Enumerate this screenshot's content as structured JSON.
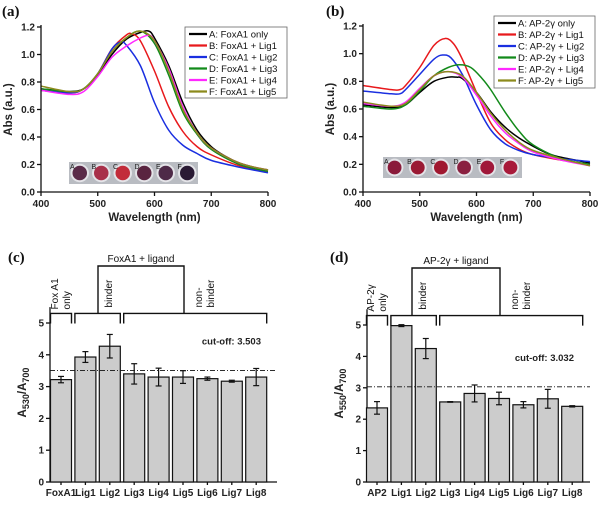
{
  "chart_data": [
    {
      "panel": "(a)",
      "type": "line",
      "xlabel": "Wavelength (nm)",
      "ylabel": "Abs (a.u.)",
      "xlim": [
        400,
        800
      ],
      "ylim": [
        0,
        1.2
      ],
      "xticks": [
        400,
        500,
        600,
        700,
        800
      ],
      "yticks": [
        "0.0",
        "0.2",
        "0.4",
        "0.6",
        "0.8",
        "1.0",
        "1.2"
      ],
      "legend_position": "top-right",
      "inset_labels": [
        "A",
        "B",
        "C",
        "D",
        "E",
        "F"
      ],
      "inset_colors": [
        "#5a2a48",
        "#a8304a",
        "#c22c3a",
        "#5a2440",
        "#4e2a48",
        "#2a1a34"
      ],
      "series": [
        {
          "name": "A: FoxA1 only",
          "color": "#000000",
          "x": [
            400,
            425,
            450,
            475,
            500,
            525,
            550,
            575,
            590,
            600,
            625,
            650,
            675,
            700,
            725,
            750,
            775,
            800
          ],
          "y": [
            0.75,
            0.74,
            0.73,
            0.75,
            0.85,
            1.0,
            1.11,
            1.16,
            1.17,
            1.12,
            0.92,
            0.65,
            0.45,
            0.33,
            0.26,
            0.21,
            0.18,
            0.16
          ]
        },
        {
          "name": "B: FoxA1 + Lig1",
          "color": "#e8191c",
          "x": [
            400,
            450,
            475,
            500,
            525,
            550,
            560,
            575,
            600,
            625,
            650,
            675,
            700,
            750,
            800
          ],
          "y": [
            0.74,
            0.72,
            0.75,
            0.86,
            1.04,
            1.14,
            1.15,
            1.1,
            0.88,
            0.62,
            0.44,
            0.33,
            0.27,
            0.19,
            0.15
          ]
        },
        {
          "name": "C: FoxA1 + Lig2",
          "color": "#1a2fe0",
          "x": [
            400,
            450,
            475,
            500,
            525,
            540,
            550,
            575,
            600,
            625,
            650,
            675,
            700,
            750,
            800
          ],
          "y": [
            0.74,
            0.72,
            0.75,
            0.86,
            1.04,
            1.09,
            1.07,
            0.92,
            0.65,
            0.45,
            0.34,
            0.28,
            0.23,
            0.18,
            0.14
          ]
        },
        {
          "name": "D: FoxA1 + Lig3",
          "color": "#128a1a",
          "x": [
            400,
            450,
            475,
            500,
            525,
            550,
            575,
            600,
            625,
            650,
            675,
            700,
            750,
            800
          ],
          "y": [
            0.75,
            0.73,
            0.75,
            0.86,
            1.02,
            1.12,
            1.17,
            1.08,
            0.85,
            0.58,
            0.42,
            0.31,
            0.2,
            0.15
          ]
        },
        {
          "name": "E: FoxA1 + Lig4",
          "color": "#ff28ff",
          "x": [
            400,
            450,
            475,
            500,
            525,
            550,
            575,
            590,
            600,
            625,
            650,
            675,
            700,
            750,
            800
          ],
          "y": [
            0.74,
            0.71,
            0.73,
            0.84,
            0.98,
            1.06,
            1.12,
            1.14,
            1.1,
            0.9,
            0.62,
            0.43,
            0.32,
            0.21,
            0.16
          ]
        },
        {
          "name": "F: FoxA1 + Lig5",
          "color": "#8c8a1c",
          "x": [
            400,
            450,
            475,
            500,
            525,
            550,
            575,
            600,
            625,
            650,
            675,
            700,
            750,
            800
          ],
          "y": [
            0.77,
            0.73,
            0.75,
            0.86,
            1.02,
            1.12,
            1.17,
            1.1,
            0.88,
            0.6,
            0.43,
            0.32,
            0.21,
            0.16
          ]
        }
      ]
    },
    {
      "panel": "(b)",
      "type": "line",
      "xlabel": "Wavelength (nm)",
      "ylabel": "Abs (a.u.)",
      "xlim": [
        400,
        800
      ],
      "ylim": [
        0,
        1.2
      ],
      "xticks": [
        400,
        500,
        600,
        700,
        800
      ],
      "yticks": [
        "0.0",
        "0.2",
        "0.4",
        "0.6",
        "0.8",
        "1.0",
        "1.2"
      ],
      "legend_position": "top-right",
      "inset_labels": [
        "A",
        "B",
        "C",
        "D",
        "E",
        "F"
      ],
      "inset_colors": [
        "#8a1a3a",
        "#9a1a34",
        "#a01830",
        "#8a2040",
        "#a0183a",
        "#a81a3a"
      ],
      "series": [
        {
          "name": "A: AP-2γ only",
          "color": "#000000",
          "x": [
            400,
            450,
            475,
            500,
            525,
            550,
            565,
            575,
            600,
            625,
            650,
            675,
            700,
            725,
            750,
            800
          ],
          "y": [
            0.63,
            0.61,
            0.63,
            0.72,
            0.8,
            0.83,
            0.83,
            0.82,
            0.72,
            0.58,
            0.47,
            0.39,
            0.33,
            0.28,
            0.25,
            0.21
          ]
        },
        {
          "name": "B: AP-2γ + Lig1",
          "color": "#e8191c",
          "x": [
            400,
            450,
            465,
            475,
            500,
            525,
            545,
            560,
            575,
            600,
            625,
            650,
            675,
            700,
            750,
            800
          ],
          "y": [
            0.77,
            0.74,
            0.74,
            0.77,
            0.9,
            1.06,
            1.11,
            1.07,
            0.96,
            0.72,
            0.5,
            0.38,
            0.31,
            0.27,
            0.23,
            0.2
          ]
        },
        {
          "name": "C: AP-2γ + Lig2",
          "color": "#1a2fe0",
          "x": [
            400,
            450,
            465,
            475,
            500,
            525,
            540,
            555,
            575,
            600,
            625,
            650,
            675,
            700,
            750,
            800
          ],
          "y": [
            0.73,
            0.71,
            0.71,
            0.74,
            0.85,
            0.96,
            0.99,
            0.97,
            0.85,
            0.63,
            0.45,
            0.35,
            0.3,
            0.27,
            0.24,
            0.22
          ]
        },
        {
          "name": "D: AP-2γ + Lig3",
          "color": "#128a1a",
          "x": [
            400,
            450,
            475,
            500,
            525,
            550,
            570,
            590,
            610,
            625,
            650,
            675,
            700,
            750,
            800
          ],
          "y": [
            0.62,
            0.6,
            0.63,
            0.73,
            0.84,
            0.9,
            0.92,
            0.9,
            0.82,
            0.74,
            0.58,
            0.44,
            0.34,
            0.24,
            0.2
          ]
        },
        {
          "name": "E: AP-2γ + Lig4",
          "color": "#ff28ff",
          "x": [
            400,
            450,
            475,
            500,
            525,
            550,
            575,
            600,
            625,
            650,
            675,
            700,
            750,
            800
          ],
          "y": [
            0.64,
            0.62,
            0.65,
            0.75,
            0.84,
            0.87,
            0.83,
            0.7,
            0.55,
            0.43,
            0.35,
            0.29,
            0.23,
            0.19
          ]
        },
        {
          "name": "F: AP-2γ + Lig5",
          "color": "#8c8a1c",
          "x": [
            400,
            450,
            475,
            500,
            525,
            550,
            575,
            600,
            625,
            650,
            675,
            700,
            750,
            800
          ],
          "y": [
            0.65,
            0.62,
            0.64,
            0.74,
            0.84,
            0.87,
            0.84,
            0.72,
            0.57,
            0.45,
            0.36,
            0.3,
            0.24,
            0.19
          ]
        }
      ]
    },
    {
      "panel": "(c)",
      "type": "bar",
      "ylabel": {
        "a": "A",
        "sub1": "530",
        "mid": "/A",
        "sub2": "700"
      },
      "ylim": [
        0,
        5.5
      ],
      "yticks": [
        0,
        1,
        2,
        3,
        4,
        5
      ],
      "categories": [
        "FoxA1",
        "Lig1",
        "Lig2",
        "Lig3",
        "Lig4",
        "Lig5",
        "Lig6",
        "Lig7",
        "Lig8"
      ],
      "values": [
        3.22,
        3.93,
        4.27,
        3.4,
        3.3,
        3.3,
        3.25,
        3.17,
        3.3
      ],
      "errors": [
        0.1,
        0.17,
        0.37,
        0.32,
        0.28,
        0.2,
        0.05,
        0.03,
        0.27
      ],
      "bar_color": "#cccccc",
      "cutoff": 3.503,
      "cutoff_label": "cut-off: 3.503",
      "annotations": {
        "group_title": "FoxA1 + ligand",
        "only_1": "Fox A1",
        "only_2": "only",
        "binder": "binder",
        "nonbinder_1": "non-",
        "nonbinder_2": "binder"
      }
    },
    {
      "panel": "(d)",
      "type": "bar",
      "ylabel": {
        "a": "A",
        "sub1": "550",
        "mid": "/A",
        "sub2": "700"
      },
      "ylim": [
        0,
        5.5
      ],
      "yticks": [
        0,
        1,
        2,
        3,
        4,
        5
      ],
      "categories": [
        "AP2",
        "Lig1",
        "Lig2",
        "Lig3",
        "Lig4",
        "Lig5",
        "Lig6",
        "Lig7",
        "Lig8"
      ],
      "values": [
        2.36,
        4.98,
        4.25,
        2.55,
        2.82,
        2.66,
        2.46,
        2.65,
        2.41
      ],
      "errors": [
        0.2,
        0.03,
        0.32,
        0.01,
        0.27,
        0.2,
        0.1,
        0.3,
        0.02
      ],
      "bar_color": "#cccccc",
      "cutoff": 3.032,
      "cutoff_label": "cut-off: 3.032",
      "annotations": {
        "group_title": "AP-2γ + ligand",
        "only_1": "AP-2γ",
        "only_2": "only",
        "binder": "binder",
        "nonbinder_1": "non-",
        "nonbinder_2": "binder"
      }
    }
  ]
}
